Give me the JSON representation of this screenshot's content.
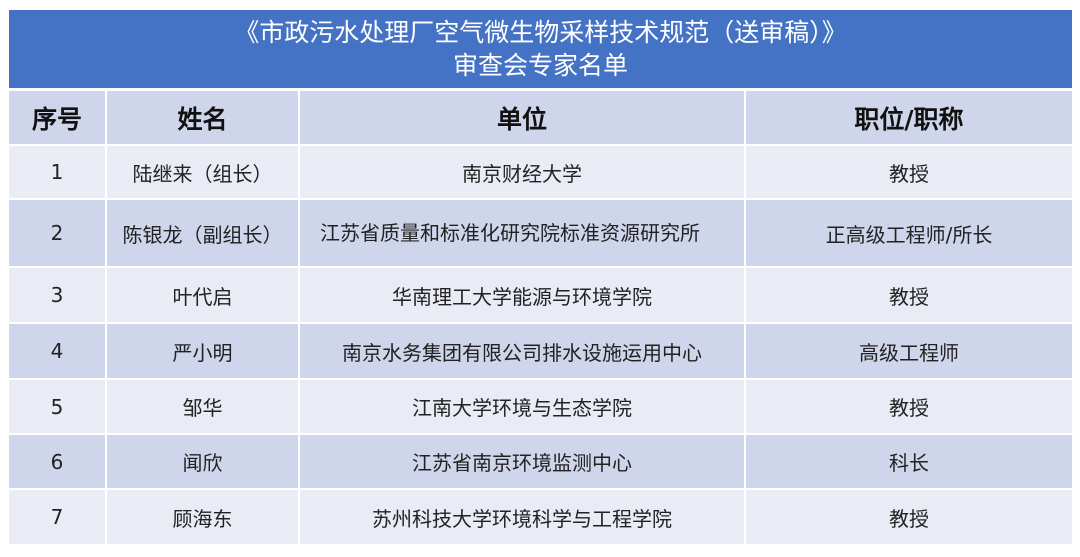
{
  "title": {
    "line1": "《市政污水处理厂空气微生物采样技术规范（送审稿）》",
    "line2": "审查会专家名单"
  },
  "headers": [
    "序号",
    "姓名",
    "单位",
    "职位/职称"
  ],
  "rows": [
    [
      "1",
      "陆继来（组长）",
      "南京财经大学",
      "教授"
    ],
    [
      "2",
      "陈银龙（副组长）",
      "江苏省质量和标准化研究院标准资源研究所",
      "正高级工程师/所长"
    ],
    [
      "3",
      "叶代启",
      "华南理工大学能源与环境学院",
      "教授"
    ],
    [
      "4",
      "严小明",
      "南京水务集团有限公司排水设施运用中心",
      "高级工程师"
    ],
    [
      "5",
      "邹华",
      "江南大学环境与生态学院",
      "教授"
    ],
    [
      "6",
      "闻欣",
      "江苏省南京环境监测中心",
      "科长"
    ],
    [
      "7",
      "顾海东",
      "苏州科技大学环境科学与工程学院",
      "教授"
    ]
  ],
  "colors": {
    "title_bg": "#4472C4",
    "header_bg": "#CFD5EA",
    "row_light": "#E9EBF5",
    "row_dark": "#CFD5EA"
  }
}
